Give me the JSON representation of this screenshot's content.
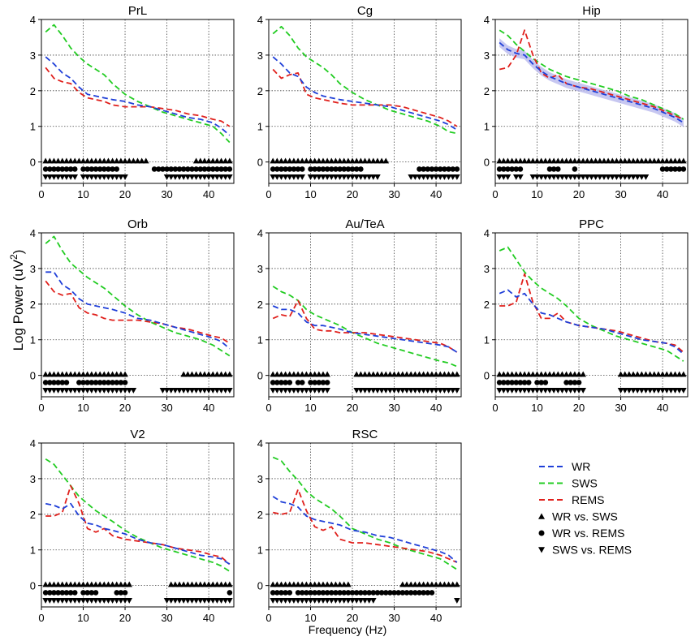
{
  "figure": {
    "ylabel_base": "Log Power (uV",
    "ylabel_sup": "2",
    "ylabel_end": ")",
    "xlabel": "Frequency (Hz)"
  },
  "colors": {
    "WR": "#1f3fd8",
    "SWS": "#22cc22",
    "REMS": "#e0201c",
    "band": "#b9b9ee"
  },
  "legend": {
    "series": [
      {
        "key": "WR",
        "label": "WR"
      },
      {
        "key": "SWS",
        "label": "SWS"
      },
      {
        "key": "REMS",
        "label": "REMS"
      }
    ],
    "markers": [
      {
        "symbol": "triangle-up",
        "label": "WR vs. SWS"
      },
      {
        "symbol": "circle",
        "label": "WR vs. REMS"
      },
      {
        "symbol": "triangle-down",
        "label": "SWS vs. REMS"
      }
    ]
  },
  "chart_data": [
    {
      "type": "line",
      "title": "PrL",
      "xlim": [
        0,
        46
      ],
      "ylim": [
        -0.6,
        4
      ],
      "xticks": [
        0,
        10,
        20,
        30,
        40
      ],
      "yticks": [
        0,
        1,
        2,
        3,
        4
      ],
      "x": [
        1,
        3,
        5,
        7,
        9,
        11,
        13,
        15,
        17,
        20,
        23,
        26,
        29,
        32,
        35,
        38,
        41,
        43,
        45
      ],
      "series": [
        {
          "name": "WR",
          "values": [
            2.95,
            2.75,
            2.5,
            2.35,
            2.1,
            1.9,
            1.85,
            1.8,
            1.75,
            1.7,
            1.6,
            1.55,
            1.45,
            1.35,
            1.25,
            1.2,
            1.1,
            0.95,
            0.75
          ]
        },
        {
          "name": "SWS",
          "values": [
            3.65,
            3.85,
            3.55,
            3.2,
            2.95,
            2.75,
            2.6,
            2.45,
            2.2,
            1.9,
            1.7,
            1.55,
            1.4,
            1.3,
            1.2,
            1.1,
            1.0,
            0.8,
            0.55
          ]
        },
        {
          "name": "REMS",
          "values": [
            2.65,
            2.35,
            2.25,
            2.2,
            1.95,
            1.8,
            1.75,
            1.7,
            1.6,
            1.55,
            1.55,
            1.55,
            1.5,
            1.45,
            1.35,
            1.3,
            1.2,
            1.15,
            1.0
          ]
        }
      ],
      "significance": {
        "WR_vs_SWS": [
          1,
          25,
          37,
          45
        ],
        "WR_vs_REMS": [
          1,
          8,
          10,
          18,
          27,
          45
        ],
        "SWS_vs_REMS": [
          1,
          8,
          10,
          20,
          30,
          45
        ]
      }
    },
    {
      "type": "line",
      "title": "Cg",
      "xlim": [
        0,
        46
      ],
      "ylim": [
        -0.6,
        4
      ],
      "xticks": [
        0,
        10,
        20,
        30,
        40
      ],
      "yticks": [
        0,
        1,
        2,
        3,
        4
      ],
      "x": [
        1,
        3,
        5,
        7,
        9,
        11,
        13,
        15,
        17,
        20,
        23,
        26,
        29,
        32,
        35,
        38,
        41,
        43,
        45
      ],
      "series": [
        {
          "name": "WR",
          "values": [
            2.95,
            2.75,
            2.5,
            2.4,
            2.1,
            1.95,
            1.85,
            1.8,
            1.75,
            1.7,
            1.65,
            1.6,
            1.55,
            1.45,
            1.35,
            1.25,
            1.15,
            1.05,
            0.9
          ]
        },
        {
          "name": "SWS",
          "values": [
            3.6,
            3.8,
            3.55,
            3.2,
            2.95,
            2.8,
            2.65,
            2.45,
            2.2,
            1.95,
            1.75,
            1.6,
            1.45,
            1.35,
            1.25,
            1.15,
            1.0,
            0.85,
            0.8
          ]
        },
        {
          "name": "REMS",
          "values": [
            2.6,
            2.35,
            2.45,
            2.5,
            1.9,
            1.8,
            1.75,
            1.7,
            1.65,
            1.6,
            1.6,
            1.6,
            1.6,
            1.55,
            1.45,
            1.35,
            1.25,
            1.15,
            1.0
          ]
        }
      ],
      "significance": {
        "WR_vs_SWS": [
          1,
          28
        ],
        "WR_vs_REMS": [
          1,
          8,
          10,
          22,
          36,
          45
        ],
        "SWS_vs_REMS": [
          1,
          8,
          10,
          26,
          34,
          45
        ]
      }
    },
    {
      "type": "line",
      "title": "Hip",
      "xlim": [
        0,
        46
      ],
      "ylim": [
        -0.6,
        4
      ],
      "xticks": [
        0,
        10,
        20,
        30,
        40
      ],
      "yticks": [
        0,
        1,
        2,
        3,
        4
      ],
      "x": [
        1,
        3,
        5,
        7,
        9,
        11,
        13,
        15,
        17,
        20,
        23,
        26,
        29,
        32,
        35,
        38,
        41,
        43,
        45
      ],
      "series": [
        {
          "name": "WR",
          "values": [
            3.35,
            3.15,
            3.05,
            3.0,
            2.75,
            2.55,
            2.4,
            2.3,
            2.2,
            2.1,
            2.0,
            1.9,
            1.8,
            1.7,
            1.6,
            1.5,
            1.35,
            1.25,
            1.1
          ]
        },
        {
          "name": "SWS",
          "values": [
            3.7,
            3.55,
            3.3,
            3.1,
            2.9,
            2.75,
            2.6,
            2.5,
            2.4,
            2.3,
            2.2,
            2.1,
            2.0,
            1.85,
            1.75,
            1.6,
            1.45,
            1.35,
            1.2
          ]
        },
        {
          "name": "REMS",
          "values": [
            2.6,
            2.65,
            3.0,
            3.7,
            3.0,
            2.5,
            2.35,
            2.45,
            2.2,
            2.1,
            2.05,
            1.95,
            1.85,
            1.75,
            1.65,
            1.55,
            1.4,
            1.3,
            1.2
          ]
        }
      ],
      "band": {
        "series": "WR",
        "halfwidth": 0.12
      },
      "significance": {
        "WR_vs_SWS": [
          1,
          45
        ],
        "WR_vs_REMS": [
          1,
          6,
          13,
          15,
          19,
          19,
          40,
          45
        ],
        "SWS_vs_REMS": [
          1,
          3,
          5,
          6,
          9,
          36
        ]
      }
    },
    {
      "type": "line",
      "title": "Orb",
      "xlim": [
        0,
        46
      ],
      "ylim": [
        -0.6,
        4
      ],
      "xticks": [
        0,
        10,
        20,
        30,
        40
      ],
      "yticks": [
        0,
        1,
        2,
        3,
        4
      ],
      "x": [
        1,
        3,
        5,
        7,
        9,
        11,
        13,
        15,
        17,
        20,
        23,
        26,
        29,
        32,
        35,
        38,
        41,
        43,
        45
      ],
      "series": [
        {
          "name": "WR",
          "values": [
            2.9,
            2.9,
            2.55,
            2.4,
            2.15,
            2.0,
            1.95,
            1.9,
            1.85,
            1.75,
            1.6,
            1.55,
            1.45,
            1.35,
            1.25,
            1.15,
            1.05,
            0.95,
            0.75
          ]
        },
        {
          "name": "SWS",
          "values": [
            3.7,
            3.9,
            3.5,
            3.15,
            2.95,
            2.75,
            2.6,
            2.45,
            2.25,
            1.95,
            1.7,
            1.5,
            1.35,
            1.2,
            1.1,
            1.0,
            0.85,
            0.7,
            0.55
          ]
        },
        {
          "name": "REMS",
          "values": [
            2.65,
            2.35,
            2.25,
            2.3,
            1.9,
            1.75,
            1.7,
            1.6,
            1.55,
            1.55,
            1.55,
            1.5,
            1.45,
            1.35,
            1.3,
            1.2,
            1.1,
            1.05,
            0.9
          ]
        }
      ],
      "significance": {
        "WR_vs_SWS": [
          1,
          20,
          34,
          45
        ],
        "WR_vs_REMS": [
          1,
          6,
          9,
          20
        ],
        "SWS_vs_REMS": [
          1,
          22,
          29,
          45
        ]
      }
    },
    {
      "type": "line",
      "title": "Au/TeA",
      "xlim": [
        0,
        46
      ],
      "ylim": [
        -0.6,
        4
      ],
      "xticks": [
        0,
        10,
        20,
        30,
        40
      ],
      "yticks": [
        0,
        1,
        2,
        3,
        4
      ],
      "x": [
        1,
        3,
        5,
        7,
        9,
        11,
        13,
        15,
        17,
        20,
        23,
        26,
        29,
        32,
        35,
        38,
        41,
        43,
        45
      ],
      "series": [
        {
          "name": "WR",
          "values": [
            1.95,
            1.85,
            1.85,
            1.75,
            1.5,
            1.4,
            1.4,
            1.35,
            1.3,
            1.2,
            1.15,
            1.1,
            1.05,
            1.0,
            0.95,
            0.9,
            0.85,
            0.8,
            0.65
          ]
        },
        {
          "name": "SWS",
          "values": [
            2.5,
            2.35,
            2.25,
            2.1,
            1.85,
            1.7,
            1.6,
            1.5,
            1.4,
            1.2,
            1.05,
            0.9,
            0.8,
            0.7,
            0.6,
            0.5,
            0.4,
            0.35,
            0.25
          ]
        },
        {
          "name": "REMS",
          "values": [
            1.6,
            1.7,
            1.65,
            2.1,
            1.6,
            1.3,
            1.25,
            1.25,
            1.2,
            1.2,
            1.2,
            1.15,
            1.1,
            1.05,
            1.0,
            0.95,
            0.9,
            0.8,
            0.65
          ]
        }
      ],
      "significance": {
        "WR_vs_SWS": [
          1,
          14,
          21,
          45
        ],
        "WR_vs_REMS": [
          1,
          5,
          7,
          8,
          10,
          14
        ],
        "SWS_vs_REMS": [
          1,
          14,
          21,
          45
        ]
      }
    },
    {
      "type": "line",
      "title": "PPC",
      "xlim": [
        0,
        46
      ],
      "ylim": [
        -0.6,
        4
      ],
      "xticks": [
        0,
        10,
        20,
        30,
        40
      ],
      "yticks": [
        0,
        1,
        2,
        3,
        4
      ],
      "x": [
        1,
        3,
        5,
        7,
        9,
        11,
        13,
        15,
        17,
        20,
        23,
        26,
        29,
        32,
        35,
        38,
        41,
        43,
        45
      ],
      "series": [
        {
          "name": "WR",
          "values": [
            2.3,
            2.4,
            2.2,
            2.3,
            2.0,
            1.75,
            1.7,
            1.6,
            1.5,
            1.4,
            1.35,
            1.3,
            1.2,
            1.1,
            1.0,
            0.95,
            0.9,
            0.8,
            0.6
          ]
        },
        {
          "name": "SWS",
          "values": [
            3.5,
            3.6,
            3.25,
            2.9,
            2.65,
            2.45,
            2.3,
            2.15,
            1.95,
            1.6,
            1.4,
            1.25,
            1.1,
            1.0,
            0.9,
            0.8,
            0.7,
            0.55,
            0.4
          ]
        },
        {
          "name": "REMS",
          "values": [
            1.95,
            1.95,
            2.05,
            2.85,
            2.05,
            1.6,
            1.6,
            1.75,
            1.5,
            1.4,
            1.35,
            1.3,
            1.25,
            1.15,
            1.05,
            0.95,
            0.9,
            0.85,
            0.65
          ]
        }
      ],
      "significance": {
        "WR_vs_SWS": [
          1,
          21,
          30,
          45
        ],
        "WR_vs_REMS": [
          1,
          8,
          10,
          12,
          17,
          20
        ],
        "SWS_vs_REMS": [
          1,
          21,
          30,
          45
        ]
      }
    },
    {
      "type": "line",
      "title": "V2",
      "xlim": [
        0,
        46
      ],
      "ylim": [
        -0.6,
        4
      ],
      "xticks": [
        0,
        10,
        20,
        30,
        40
      ],
      "yticks": [
        0,
        1,
        2,
        3,
        4
      ],
      "x": [
        1,
        3,
        5,
        7,
        9,
        11,
        13,
        15,
        17,
        20,
        23,
        26,
        29,
        32,
        35,
        38,
        41,
        43,
        45
      ],
      "series": [
        {
          "name": "WR",
          "values": [
            2.3,
            2.25,
            2.15,
            2.3,
            1.95,
            1.75,
            1.7,
            1.6,
            1.55,
            1.45,
            1.3,
            1.2,
            1.15,
            1.05,
            0.95,
            0.85,
            0.8,
            0.75,
            0.6
          ]
        },
        {
          "name": "SWS",
          "values": [
            3.55,
            3.4,
            3.1,
            2.8,
            2.5,
            2.3,
            2.1,
            1.95,
            1.8,
            1.55,
            1.35,
            1.2,
            1.05,
            0.95,
            0.85,
            0.75,
            0.65,
            0.55,
            0.4
          ]
        },
        {
          "name": "REMS",
          "values": [
            1.95,
            1.95,
            2.05,
            2.8,
            2.3,
            1.6,
            1.5,
            1.6,
            1.4,
            1.3,
            1.25,
            1.2,
            1.15,
            1.05,
            1.0,
            0.95,
            0.85,
            0.8,
            0.6
          ]
        }
      ],
      "significance": {
        "WR_vs_SWS": [
          1,
          21,
          31,
          45
        ],
        "WR_vs_REMS": [
          1,
          6,
          7,
          8,
          10,
          13,
          18,
          20,
          45,
          45
        ],
        "SWS_vs_REMS": [
          1,
          21,
          30,
          45
        ]
      }
    },
    {
      "type": "line",
      "title": "RSC",
      "xlim": [
        0,
        46
      ],
      "ylim": [
        -0.6,
        4
      ],
      "xticks": [
        0,
        10,
        20,
        30,
        40
      ],
      "yticks": [
        0,
        1,
        2,
        3,
        4
      ],
      "x": [
        1,
        3,
        5,
        7,
        9,
        11,
        13,
        15,
        17,
        20,
        23,
        26,
        29,
        32,
        35,
        38,
        41,
        43,
        45
      ],
      "series": [
        {
          "name": "WR",
          "values": [
            2.5,
            2.35,
            2.3,
            2.2,
            1.95,
            1.85,
            1.8,
            1.75,
            1.7,
            1.55,
            1.5,
            1.4,
            1.35,
            1.25,
            1.15,
            1.05,
            0.95,
            0.85,
            0.65
          ]
        },
        {
          "name": "SWS",
          "values": [
            3.6,
            3.5,
            3.2,
            2.95,
            2.65,
            2.45,
            2.3,
            2.15,
            1.95,
            1.6,
            1.45,
            1.3,
            1.2,
            1.05,
            0.95,
            0.85,
            0.75,
            0.6,
            0.45
          ]
        },
        {
          "name": "REMS",
          "values": [
            2.05,
            2.0,
            2.05,
            2.7,
            2.1,
            1.65,
            1.55,
            1.65,
            1.3,
            1.2,
            1.2,
            1.15,
            1.1,
            1.05,
            1.0,
            0.95,
            0.85,
            0.75,
            0.65
          ]
        }
      ],
      "significance": {
        "WR_vs_SWS": [
          1,
          19,
          32,
          45
        ],
        "WR_vs_REMS": [
          1,
          5,
          7,
          39
        ],
        "SWS_vs_REMS": [
          1,
          25,
          45,
          45
        ]
      }
    }
  ]
}
